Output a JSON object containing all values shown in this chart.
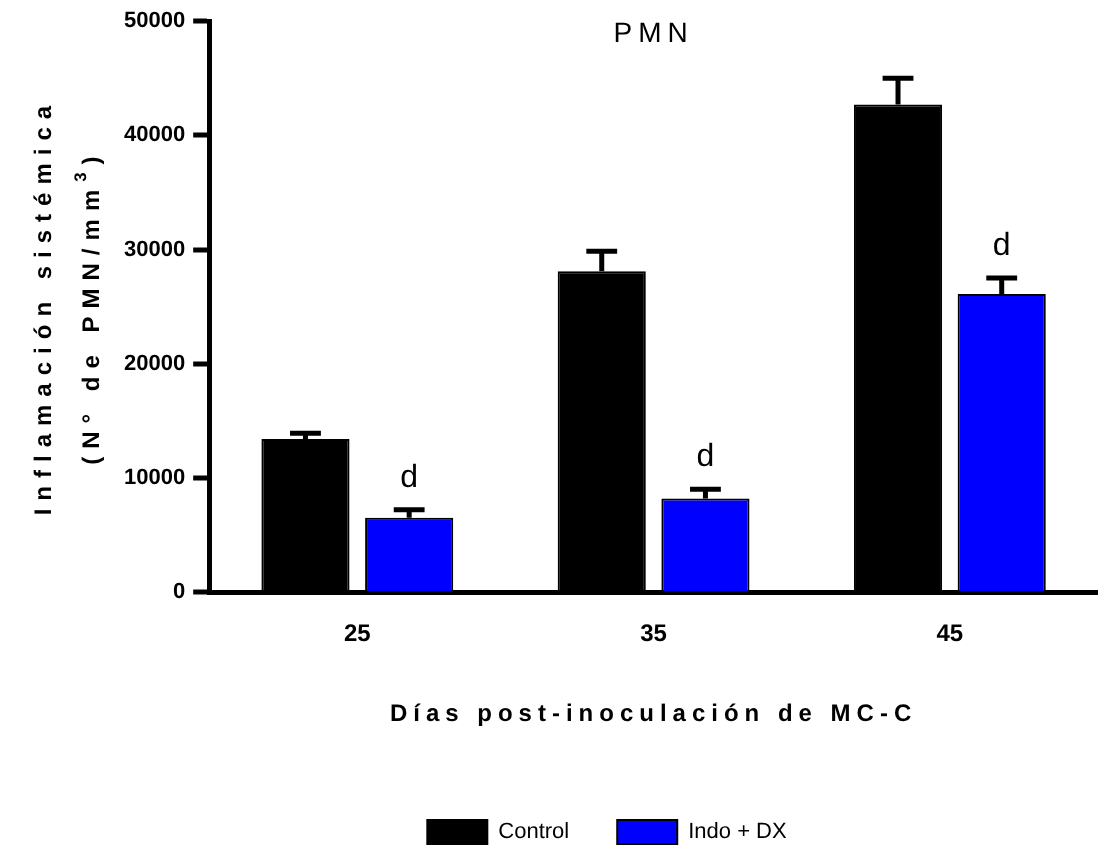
{
  "chart_data": {
    "type": "bar",
    "title": "PMN",
    "xlabel": "Días post-inoculación de MC-C",
    "ylabel": "Inflamación sistémica\n(N° de PMN/mm$^{3}$)",
    "categories": [
      "25",
      "35",
      "45"
    ],
    "series": [
      {
        "name": "Control",
        "color": "#000000",
        "values": [
          13400,
          28100,
          42700
        ],
        "errors": [
          [
            13400,
            13900
          ],
          [
            28100,
            29850
          ],
          [
            42700,
            45000
          ]
        ]
      },
      {
        "name": "Indo + DX",
        "color": "#0000ff",
        "values": [
          6500,
          8200,
          26100
        ],
        "errors": [
          [
            6500,
            7200
          ],
          [
            8200,
            9000
          ],
          [
            26100,
            27500
          ]
        ]
      }
    ],
    "annotations": [
      {
        "text": "d",
        "x": "25",
        "y": 7200
      },
      {
        "text": "d",
        "x": "35",
        "y": 9000
      },
      {
        "text": "d",
        "x": "45",
        "y": 27500
      }
    ],
    "ylim": [
      0,
      50000
    ],
    "yticks": [
      0,
      10000,
      20000,
      30000,
      40000,
      50000
    ],
    "grid": false,
    "legend": "bottom"
  }
}
